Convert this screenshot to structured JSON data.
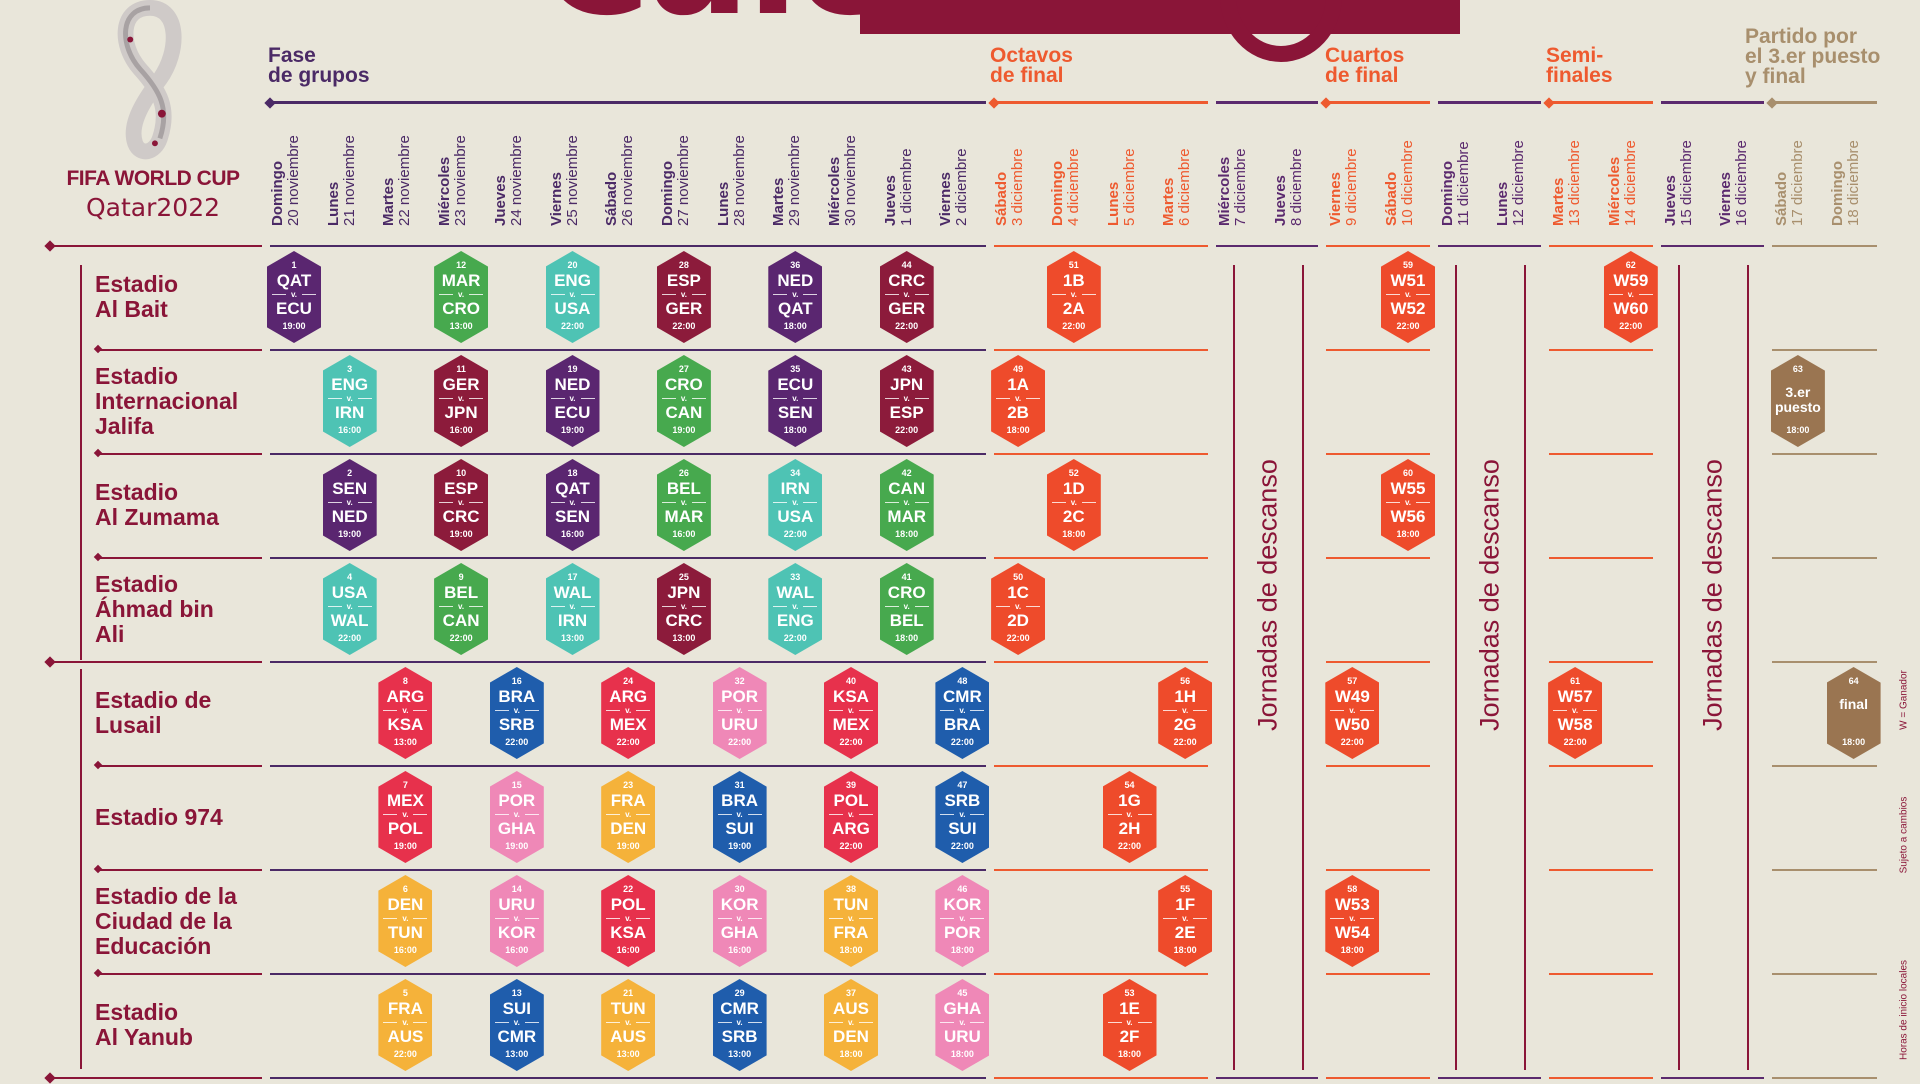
{
  "title": "Calendario",
  "brand": {
    "line1": "FIFA WORLD CUP",
    "line2": "Qatar2022"
  },
  "colors": {
    "A": "#5a2670",
    "B": "#4ec3b4",
    "C": "#e7314c",
    "D": "#f5b23a",
    "E": "#8c1b3b",
    "F": "#47a94e",
    "G": "#1f5dac",
    "H": "#ef88b7",
    "KO": "#ee4b2b",
    "FIN": "#9a7551",
    "group_stage": "#4b2a66",
    "knockout_stage": "#ee5a2f",
    "rest": "#5b2a6e",
    "final_stage": "#a88f6d",
    "background": "#e9e6da",
    "brand": "#8a1538"
  },
  "stages": [
    {
      "label": "Fase\nde grupos",
      "color": "group_stage"
    },
    {
      "label": "Octavos\nde final",
      "color": "knockout_stage"
    },
    {
      "label": "Cuartos\nde final",
      "color": "knockout_stage"
    },
    {
      "label": "Semi-\nfinales",
      "color": "knockout_stage"
    },
    {
      "label": "Partido por\nel 3.er puesto\ny final",
      "color": "final_stage"
    }
  ],
  "dates": [
    {
      "wd": "Domingo",
      "d": "20 noviembre",
      "c": "group_stage"
    },
    {
      "wd": "Lunes",
      "d": "21 noviembre",
      "c": "group_stage"
    },
    {
      "wd": "Martes",
      "d": "22 noviembre",
      "c": "group_stage"
    },
    {
      "wd": "Miércoles",
      "d": "23 noviembre",
      "c": "group_stage"
    },
    {
      "wd": "Jueves",
      "d": "24 noviembre",
      "c": "group_stage"
    },
    {
      "wd": "Viernes",
      "d": "25 noviembre",
      "c": "group_stage"
    },
    {
      "wd": "Sábado",
      "d": "26 noviembre",
      "c": "group_stage"
    },
    {
      "wd": "Domingo",
      "d": "27 noviembre",
      "c": "group_stage"
    },
    {
      "wd": "Lunes",
      "d": "28 noviembre",
      "c": "group_stage"
    },
    {
      "wd": "Martes",
      "d": "29 noviembre",
      "c": "group_stage"
    },
    {
      "wd": "Miércoles",
      "d": "30 noviembre",
      "c": "group_stage"
    },
    {
      "wd": "Jueves",
      "d": "1 diciembre",
      "c": "group_stage"
    },
    {
      "wd": "Viernes",
      "d": "2 diciembre",
      "c": "group_stage"
    },
    {
      "wd": "Sábado",
      "d": "3 diciembre",
      "c": "knockout_stage"
    },
    {
      "wd": "Domingo",
      "d": "4 diciembre",
      "c": "knockout_stage"
    },
    {
      "wd": "Lunes",
      "d": "5 diciembre",
      "c": "knockout_stage"
    },
    {
      "wd": "Martes",
      "d": "6 diciembre",
      "c": "knockout_stage"
    },
    {
      "wd": "Miércoles",
      "d": "7 diciembre",
      "c": "rest"
    },
    {
      "wd": "Jueves",
      "d": "8 diciembre",
      "c": "rest"
    },
    {
      "wd": "Viernes",
      "d": "9 diciembre",
      "c": "knockout_stage"
    },
    {
      "wd": "Sábado",
      "d": "10 diciembre",
      "c": "knockout_stage"
    },
    {
      "wd": "Domingo",
      "d": "11 diciembre",
      "c": "rest"
    },
    {
      "wd": "Lunes",
      "d": "12 diciembre",
      "c": "rest"
    },
    {
      "wd": "Martes",
      "d": "13 diciembre",
      "c": "knockout_stage"
    },
    {
      "wd": "Miércoles",
      "d": "14 diciembre",
      "c": "knockout_stage"
    },
    {
      "wd": "Jueves",
      "d": "15 diciembre",
      "c": "rest"
    },
    {
      "wd": "Viernes",
      "d": "16 diciembre",
      "c": "rest"
    },
    {
      "wd": "Sábado",
      "d": "17 diciembre",
      "c": "final_stage"
    },
    {
      "wd": "Domingo",
      "d": "18 diciembre",
      "c": "final_stage"
    }
  ],
  "stadiums": [
    "Estadio\nAl Bait",
    "Estadio\nInternacional\nJalifa",
    "Estadio\nAl Zumama",
    "Estadio\nÁhmad bin\nAli",
    "Estadio de\nLusail",
    "Estadio 974",
    "Estadio de la\nCiudad de la\nEducación",
    "Estadio\nAl Yanub"
  ],
  "rest_label": "Jornadas de descanso",
  "versus": "v.",
  "notes": [
    "W = Ganador",
    "Sujeto a cambios",
    "Horas de inicio locales"
  ],
  "matches": [
    {
      "n": "1",
      "a": "QAT",
      "b": "ECU",
      "t": "19:00",
      "s": 0,
      "d": 0,
      "g": "A"
    },
    {
      "n": "12",
      "a": "MAR",
      "b": "CRO",
      "t": "13:00",
      "s": 0,
      "d": 3,
      "g": "F"
    },
    {
      "n": "20",
      "a": "ENG",
      "b": "USA",
      "t": "22:00",
      "s": 0,
      "d": 5,
      "g": "B"
    },
    {
      "n": "28",
      "a": "ESP",
      "b": "GER",
      "t": "22:00",
      "s": 0,
      "d": 7,
      "g": "E"
    },
    {
      "n": "36",
      "a": "NED",
      "b": "QAT",
      "t": "18:00",
      "s": 0,
      "d": 9,
      "g": "A"
    },
    {
      "n": "44",
      "a": "CRC",
      "b": "GER",
      "t": "22:00",
      "s": 0,
      "d": 11,
      "g": "E"
    },
    {
      "n": "51",
      "a": "1B",
      "b": "2A",
      "t": "22:00",
      "s": 0,
      "d": 14,
      "g": "KO"
    },
    {
      "n": "59",
      "a": "W51",
      "b": "W52",
      "t": "22:00",
      "s": 0,
      "d": 20,
      "g": "KO"
    },
    {
      "n": "62",
      "a": "W59",
      "b": "W60",
      "t": "22:00",
      "s": 0,
      "d": 24,
      "g": "KO"
    },
    {
      "n": "3",
      "a": "ENG",
      "b": "IRN",
      "t": "16:00",
      "s": 1,
      "d": 1,
      "g": "B"
    },
    {
      "n": "11",
      "a": "GER",
      "b": "JPN",
      "t": "16:00",
      "s": 1,
      "d": 3,
      "g": "E"
    },
    {
      "n": "19",
      "a": "NED",
      "b": "ECU",
      "t": "19:00",
      "s": 1,
      "d": 5,
      "g": "A"
    },
    {
      "n": "27",
      "a": "CRO",
      "b": "CAN",
      "t": "19:00",
      "s": 1,
      "d": 7,
      "g": "F"
    },
    {
      "n": "35",
      "a": "ECU",
      "b": "SEN",
      "t": "18:00",
      "s": 1,
      "d": 9,
      "g": "A"
    },
    {
      "n": "43",
      "a": "JPN",
      "b": "ESP",
      "t": "22:00",
      "s": 1,
      "d": 11,
      "g": "E"
    },
    {
      "n": "49",
      "a": "1A",
      "b": "2B",
      "t": "18:00",
      "s": 1,
      "d": 13,
      "g": "KO"
    },
    {
      "n": "63",
      "label": "3.er\npuesto",
      "t": "18:00",
      "s": 1,
      "d": 27,
      "g": "FIN"
    },
    {
      "n": "2",
      "a": "SEN",
      "b": "NED",
      "t": "19:00",
      "s": 2,
      "d": 1,
      "g": "A"
    },
    {
      "n": "10",
      "a": "ESP",
      "b": "CRC",
      "t": "19:00",
      "s": 2,
      "d": 3,
      "g": "E"
    },
    {
      "n": "18",
      "a": "QAT",
      "b": "SEN",
      "t": "16:00",
      "s": 2,
      "d": 5,
      "g": "A"
    },
    {
      "n": "26",
      "a": "BEL",
      "b": "MAR",
      "t": "16:00",
      "s": 2,
      "d": 7,
      "g": "F"
    },
    {
      "n": "34",
      "a": "IRN",
      "b": "USA",
      "t": "22:00",
      "s": 2,
      "d": 9,
      "g": "B"
    },
    {
      "n": "42",
      "a": "CAN",
      "b": "MAR",
      "t": "18:00",
      "s": 2,
      "d": 11,
      "g": "F"
    },
    {
      "n": "52",
      "a": "1D",
      "b": "2C",
      "t": "18:00",
      "s": 2,
      "d": 14,
      "g": "KO"
    },
    {
      "n": "60",
      "a": "W55",
      "b": "W56",
      "t": "18:00",
      "s": 2,
      "d": 20,
      "g": "KO"
    },
    {
      "n": "4",
      "a": "USA",
      "b": "WAL",
      "t": "22:00",
      "s": 3,
      "d": 1,
      "g": "B"
    },
    {
      "n": "9",
      "a": "BEL",
      "b": "CAN",
      "t": "22:00",
      "s": 3,
      "d": 3,
      "g": "F"
    },
    {
      "n": "17",
      "a": "WAL",
      "b": "IRN",
      "t": "13:00",
      "s": 3,
      "d": 5,
      "g": "B"
    },
    {
      "n": "25",
      "a": "JPN",
      "b": "CRC",
      "t": "13:00",
      "s": 3,
      "d": 7,
      "g": "E"
    },
    {
      "n": "33",
      "a": "WAL",
      "b": "ENG",
      "t": "22:00",
      "s": 3,
      "d": 9,
      "g": "B"
    },
    {
      "n": "41",
      "a": "CRO",
      "b": "BEL",
      "t": "18:00",
      "s": 3,
      "d": 11,
      "g": "F"
    },
    {
      "n": "50",
      "a": "1C",
      "b": "2D",
      "t": "22:00",
      "s": 3,
      "d": 13,
      "g": "KO"
    },
    {
      "n": "8",
      "a": "ARG",
      "b": "KSA",
      "t": "13:00",
      "s": 4,
      "d": 2,
      "g": "C"
    },
    {
      "n": "16",
      "a": "BRA",
      "b": "SRB",
      "t": "22:00",
      "s": 4,
      "d": 4,
      "g": "G"
    },
    {
      "n": "24",
      "a": "ARG",
      "b": "MEX",
      "t": "22:00",
      "s": 4,
      "d": 6,
      "g": "C"
    },
    {
      "n": "32",
      "a": "POR",
      "b": "URU",
      "t": "22:00",
      "s": 4,
      "d": 8,
      "g": "H"
    },
    {
      "n": "40",
      "a": "KSA",
      "b": "MEX",
      "t": "22:00",
      "s": 4,
      "d": 10,
      "g": "C"
    },
    {
      "n": "48",
      "a": "CMR",
      "b": "BRA",
      "t": "22:00",
      "s": 4,
      "d": 12,
      "g": "G"
    },
    {
      "n": "56",
      "a": "1H",
      "b": "2G",
      "t": "22:00",
      "s": 4,
      "d": 16,
      "g": "KO"
    },
    {
      "n": "57",
      "a": "W49",
      "b": "W50",
      "t": "22:00",
      "s": 4,
      "d": 19,
      "g": "KO"
    },
    {
      "n": "61",
      "a": "W57",
      "b": "W58",
      "t": "22:00",
      "s": 4,
      "d": 23,
      "g": "KO"
    },
    {
      "n": "64",
      "label": "final",
      "t": "18:00",
      "s": 4,
      "d": 28,
      "g": "FIN"
    },
    {
      "n": "7",
      "a": "MEX",
      "b": "POL",
      "t": "19:00",
      "s": 5,
      "d": 2,
      "g": "C"
    },
    {
      "n": "15",
      "a": "POR",
      "b": "GHA",
      "t": "19:00",
      "s": 5,
      "d": 4,
      "g": "H"
    },
    {
      "n": "23",
      "a": "FRA",
      "b": "DEN",
      "t": "19:00",
      "s": 5,
      "d": 6,
      "g": "D"
    },
    {
      "n": "31",
      "a": "BRA",
      "b": "SUI",
      "t": "19:00",
      "s": 5,
      "d": 8,
      "g": "G"
    },
    {
      "n": "39",
      "a": "POL",
      "b": "ARG",
      "t": "22:00",
      "s": 5,
      "d": 10,
      "g": "C"
    },
    {
      "n": "47",
      "a": "SRB",
      "b": "SUI",
      "t": "22:00",
      "s": 5,
      "d": 12,
      "g": "G"
    },
    {
      "n": "54",
      "a": "1G",
      "b": "2H",
      "t": "22:00",
      "s": 5,
      "d": 15,
      "g": "KO"
    },
    {
      "n": "6",
      "a": "DEN",
      "b": "TUN",
      "t": "16:00",
      "s": 6,
      "d": 2,
      "g": "D"
    },
    {
      "n": "14",
      "a": "URU",
      "b": "KOR",
      "t": "16:00",
      "s": 6,
      "d": 4,
      "g": "H"
    },
    {
      "n": "22",
      "a": "POL",
      "b": "KSA",
      "t": "16:00",
      "s": 6,
      "d": 6,
      "g": "C"
    },
    {
      "n": "30",
      "a": "KOR",
      "b": "GHA",
      "t": "16:00",
      "s": 6,
      "d": 8,
      "g": "H"
    },
    {
      "n": "38",
      "a": "TUN",
      "b": "FRA",
      "t": "18:00",
      "s": 6,
      "d": 10,
      "g": "D"
    },
    {
      "n": "46",
      "a": "KOR",
      "b": "POR",
      "t": "18:00",
      "s": 6,
      "d": 12,
      "g": "H"
    },
    {
      "n": "55",
      "a": "1F",
      "b": "2E",
      "t": "18:00",
      "s": 6,
      "d": 16,
      "g": "KO"
    },
    {
      "n": "58",
      "a": "W53",
      "b": "W54",
      "t": "18:00",
      "s": 6,
      "d": 19,
      "g": "KO"
    },
    {
      "n": "5",
      "a": "FRA",
      "b": "AUS",
      "t": "22:00",
      "s": 7,
      "d": 2,
      "g": "D"
    },
    {
      "n": "13",
      "a": "SUI",
      "b": "CMR",
      "t": "13:00",
      "s": 7,
      "d": 4,
      "g": "G"
    },
    {
      "n": "21",
      "a": "TUN",
      "b": "AUS",
      "t": "13:00",
      "s": 7,
      "d": 6,
      "g": "D"
    },
    {
      "n": "29",
      "a": "CMR",
      "b": "SRB",
      "t": "13:00",
      "s": 7,
      "d": 8,
      "g": "G"
    },
    {
      "n": "37",
      "a": "AUS",
      "b": "DEN",
      "t": "18:00",
      "s": 7,
      "d": 10,
      "g": "D"
    },
    {
      "n": "45",
      "a": "GHA",
      "b": "URU",
      "t": "18:00",
      "s": 7,
      "d": 12,
      "g": "H"
    },
    {
      "n": "53",
      "a": "1E",
      "b": "2F",
      "t": "18:00",
      "s": 7,
      "d": 15,
      "g": "KO"
    }
  ]
}
